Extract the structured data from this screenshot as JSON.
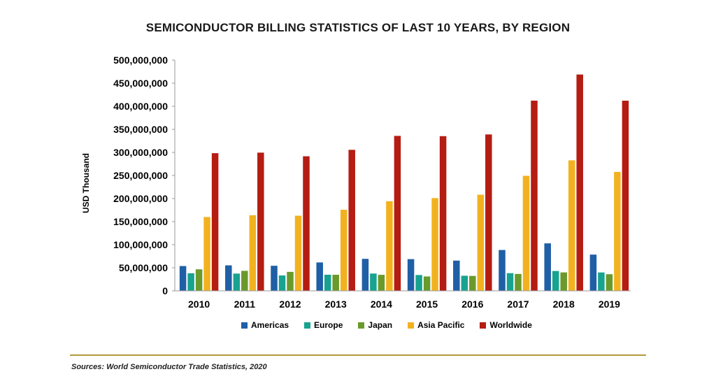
{
  "chart_data": {
    "type": "bar",
    "title": "SEMICONDUCTOR BILLING STATISTICS OF LAST 10 YEARS, BY REGION",
    "ylabel": "USD Thousand",
    "xlabel": "",
    "ylim": [
      0,
      500000000
    ],
    "yticks": [
      "0",
      "50,000,000",
      "100,000,000",
      "150,000,000",
      "200,000,000",
      "250,000,000",
      "300,000,000",
      "350,000,000",
      "400,000,000",
      "450,000,000",
      "500,000,000"
    ],
    "categories": [
      "2010",
      "2011",
      "2012",
      "2013",
      "2014",
      "2015",
      "2016",
      "2017",
      "2018",
      "2019"
    ],
    "series": [
      {
        "name": "Americas",
        "color": "#1f5fa6",
        "values": [
          53700000,
          55200000,
          54300000,
          61500000,
          69300000,
          68700000,
          65500000,
          88500000,
          102900000,
          78500000
        ]
      },
      {
        "name": "Europe",
        "color": "#17a38f",
        "values": [
          38100000,
          37400000,
          33300000,
          34900000,
          37500000,
          34300000,
          32700000,
          38300000,
          43000000,
          39800000
        ]
      },
      {
        "name": "Japan",
        "color": "#6a9a2b",
        "values": [
          46600000,
          43300000,
          41100000,
          34800000,
          34700000,
          31100000,
          32300000,
          36600000,
          39900000,
          36000000
        ]
      },
      {
        "name": "Asia Pacific",
        "color": "#f2b21f",
        "values": [
          160000000,
          163800000,
          162800000,
          175700000,
          194200000,
          201000000,
          208300000,
          249300000,
          282800000,
          257800000
        ]
      },
      {
        "name": "Worldwide",
        "color": "#b51c12",
        "values": [
          298300000,
          299500000,
          291600000,
          305600000,
          335800000,
          335200000,
          338900000,
          412200000,
          468800000,
          412100000
        ]
      }
    ],
    "grid": false,
    "legend_position": "bottom"
  },
  "source_text": "Sources: World Semiconductor Trade Statistics, 2020"
}
